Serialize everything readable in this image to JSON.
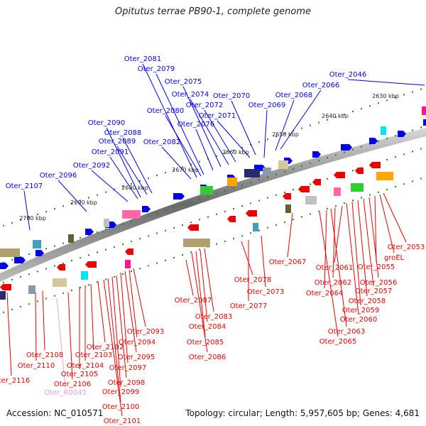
{
  "title": "Opitutus terrae PB90-1, complete genome",
  "accession": "Accession: NC_010571",
  "summary": "Topology: circular; Length: 5,957,605 bp; Genes: 4,681",
  "kbp_labels": [
    "2630 kbp",
    "2640 kbp",
    "2650 kbp",
    "2660 kbp",
    "2670 kbp",
    "2680 kbp",
    "2690 kbp",
    "2700 kbp"
  ],
  "forward_genes": [
    "Oter_2046",
    "Oter_2066",
    "Oter_2068",
    "Oter_2069",
    "Oter_2070",
    "Oter_2071",
    "Oter_2072",
    "Oter_2074",
    "Oter_2075",
    "Oter_2076",
    "Oter_2079",
    "Oter_2080",
    "Oter_2081",
    "Oter_2082",
    "Oter_2088",
    "Oter_2089",
    "Oter_2090",
    "Oter_2091",
    "Oter_2092",
    "Oter_2096",
    "Oter_2107"
  ],
  "reverse_genes": [
    "Oter_2053",
    "groEL",
    "Oter_2055",
    "Oter_2056",
    "Oter_2057",
    "Oter_2058",
    "Oter_2059",
    "Oter_2060",
    "Oter_2061",
    "Oter_2062",
    "Oter_2063",
    "Oter_2064",
    "Oter_2065",
    "Oter_2067",
    "Oter_2073",
    "Oter_2077",
    "Oter_2078",
    "Oter_2083",
    "Oter_2084",
    "Oter_2085",
    "Oter_2086",
    "Oter_2087",
    "Oter_2093",
    "Oter_2094",
    "Oter_2095",
    "Oter_2097",
    "Oter_2098",
    "Oter_2099",
    "Oter_2100",
    "Oter_2101",
    "Oter_2102",
    "Oter_2103",
    "Oter_2104",
    "Oter_2105",
    "Oter_2106",
    "Oter_2108",
    "Oter_2110",
    "Oter_2116"
  ],
  "rna_genes": [
    "Oter_R0043"
  ],
  "colors": {
    "forward": "#0000ee",
    "reverse": "#ee0000",
    "rna": "#f0a0d8",
    "backbone": "#888888",
    "tick": "#228822"
  }
}
